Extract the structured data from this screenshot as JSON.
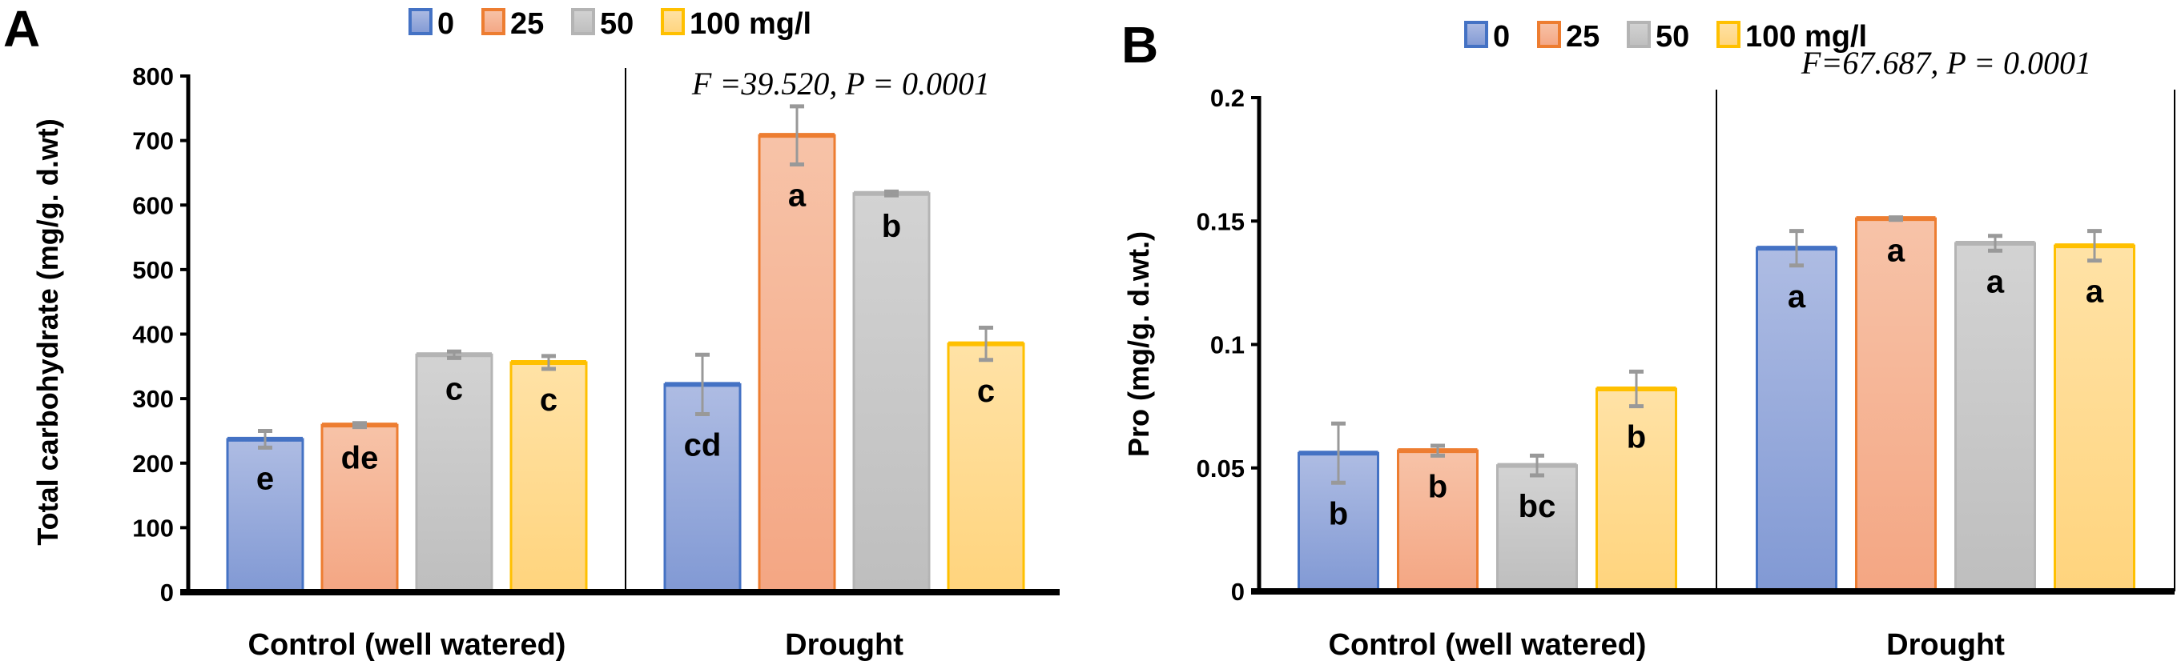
{
  "colors": {
    "series_fill_top": [
      "#AEBCE3",
      "#F7C3A8",
      "#D3D3D3",
      "#FFE2A6"
    ],
    "series_fill_bottom": [
      "#8199D4",
      "#F4A683",
      "#BEBEBE",
      "#FFD47D"
    ],
    "series_stroke": [
      "#4472C4",
      "#ED7D31",
      "#B4B4B4",
      "#FFC000"
    ],
    "error_bar": "#999999"
  },
  "chart_data": [
    {
      "panel_label": "A",
      "type": "bar",
      "legend": [
        "0",
        "25",
        "50",
        "100 mg/l"
      ],
      "legend_position": "top-center",
      "categories": [
        "Control (well watered)",
        "Drought"
      ],
      "ylabel": "Total carbohydrate (mg/g. d.wt)",
      "ylim": [
        0,
        800
      ],
      "yticks": [
        0,
        100,
        200,
        300,
        400,
        500,
        600,
        700,
        800
      ],
      "ytick_labels": [
        "0",
        "100",
        "200",
        "300",
        "400",
        "500",
        "600",
        "700",
        "800"
      ],
      "annotation": "F =39.520, P = 0.0001",
      "series": [
        {
          "name": "0",
          "values": [
            237,
            322
          ],
          "errors": [
            13,
            46
          ],
          "letters": [
            "e",
            "cd"
          ]
        },
        {
          "name": "25",
          "values": [
            259,
            708
          ],
          "errors": [
            3,
            45
          ],
          "letters": [
            "de",
            "a"
          ]
        },
        {
          "name": "50",
          "values": [
            368,
            618
          ],
          "errors": [
            5,
            3
          ],
          "letters": [
            "c",
            "b"
          ]
        },
        {
          "name": "100 mg/l",
          "values": [
            356,
            385
          ],
          "errors": [
            10,
            25
          ],
          "letters": [
            "c",
            "c"
          ]
        }
      ]
    },
    {
      "panel_label": "B",
      "type": "bar",
      "legend": [
        "0",
        "25",
        "50",
        "100 mg/l"
      ],
      "legend_position": "top-center",
      "categories": [
        "Control (well watered)",
        "Drought"
      ],
      "ylabel": "Pro (mg/g. d.wt.)",
      "ylim": [
        0,
        0.2
      ],
      "yticks": [
        0,
        0.05,
        0.1,
        0.15,
        0.2
      ],
      "ytick_labels": [
        "0",
        "0.05",
        "0.1",
        "0.15",
        "0.2"
      ],
      "annotation": "F=67.687, P = 0.0001",
      "series": [
        {
          "name": "0",
          "values": [
            0.056,
            0.139
          ],
          "errors": [
            0.012,
            0.007
          ],
          "letters": [
            "b",
            "a"
          ]
        },
        {
          "name": "25",
          "values": [
            0.057,
            0.151
          ],
          "errors": [
            0.002,
            0.0005
          ],
          "letters": [
            "b",
            "a"
          ]
        },
        {
          "name": "50",
          "values": [
            0.051,
            0.141
          ],
          "errors": [
            0.004,
            0.003
          ],
          "letters": [
            "bc",
            "a"
          ]
        },
        {
          "name": "100 mg/l",
          "values": [
            0.082,
            0.14
          ],
          "errors": [
            0.007,
            0.006
          ],
          "letters": [
            "b",
            "a"
          ]
        }
      ]
    }
  ]
}
